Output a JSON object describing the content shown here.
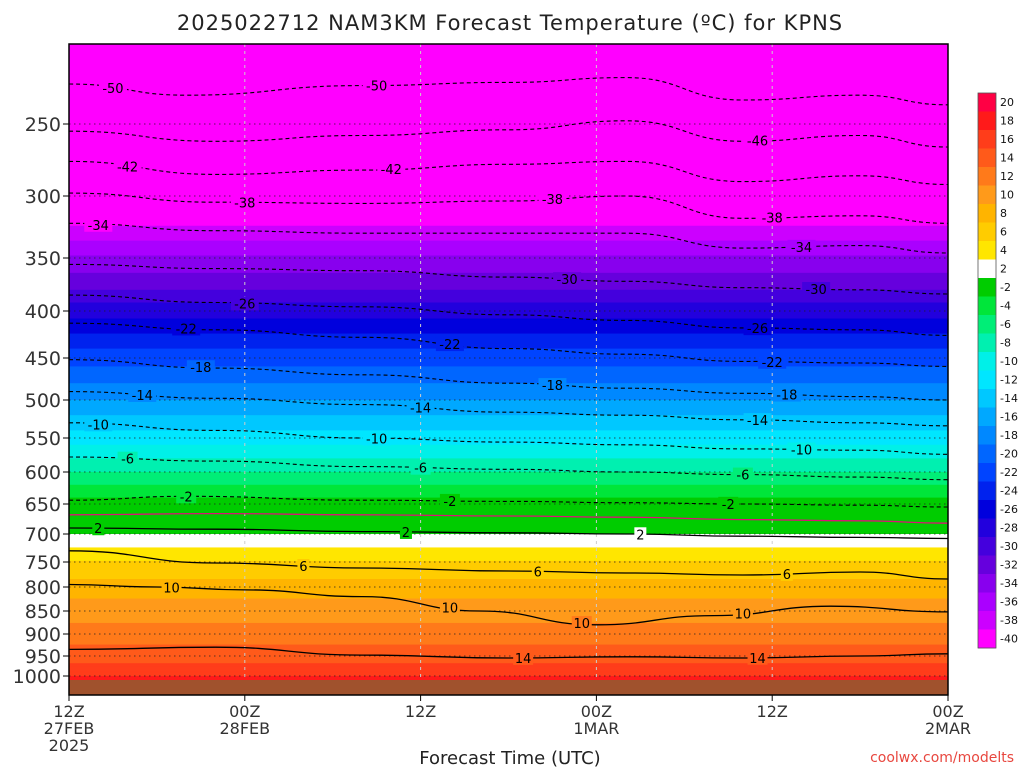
{
  "chart_data": {
    "type": "heatmap",
    "title": "2025022712 NAM3KM Forecast Temperature (ºC) for KPNS",
    "xlabel": "Forecast Time (UTC)",
    "ylabel": "",
    "watermark": "coolwx.com/modelts",
    "x_ticks": [
      {
        "hours": 0,
        "lines": [
          "12Z",
          "27FEB",
          "2025"
        ]
      },
      {
        "hours": 12,
        "lines": [
          "00Z",
          "28FEB"
        ]
      },
      {
        "hours": 24,
        "lines": [
          "12Z"
        ]
      },
      {
        "hours": 36,
        "lines": [
          "00Z",
          "1MAR"
        ]
      },
      {
        "hours": 48,
        "lines": [
          "12Z"
        ]
      },
      {
        "hours": 60,
        "lines": [
          "00Z",
          "2MAR"
        ]
      }
    ],
    "xlim_hours": [
      0,
      60
    ],
    "y_ticks": [
      250,
      300,
      350,
      400,
      450,
      500,
      550,
      600,
      650,
      700,
      750,
      800,
      850,
      900,
      950,
      1000
    ],
    "ylim_hpa": [
      200,
      1000
    ],
    "y_scale": "log-pressure",
    "grid": true,
    "colorbar": {
      "labels": [
        "20",
        "18",
        "16",
        "14",
        "12",
        "10",
        "8",
        "6",
        "4",
        "2",
        "-2",
        "-4",
        "-6",
        "-8",
        "-10",
        "-12",
        "-14",
        "-16",
        "-18",
        "-20",
        "-22",
        "-24",
        "-26",
        "-28",
        "-30",
        "-32",
        "-34",
        "-36",
        "-38",
        "-40"
      ],
      "colors": [
        "#ff0044",
        "#ff1a1a",
        "#ff3d1a",
        "#ff5a1a",
        "#ff7a1a",
        "#ff9a1a",
        "#ffb400",
        "#ffcc00",
        "#ffe600",
        "#ffffff",
        "#00cc00",
        "#00e63a",
        "#00ee77",
        "#00f0b0",
        "#00f0e8",
        "#00e6ff",
        "#00c8ff",
        "#00a8ff",
        "#0088ff",
        "#0066ff",
        "#0044ff",
        "#0022ee",
        "#0000dd",
        "#2200dd",
        "#4400dd",
        "#6600dd",
        "#8800ee",
        "#aa00ff",
        "#cc00ff",
        "#ff00ff"
      ]
    },
    "temperature_profile": [
      {
        "p": 200,
        "t": -56
      },
      {
        "p": 250,
        "t": -50
      },
      {
        "p": 300,
        "t": -42
      },
      {
        "p": 350,
        "t": -34
      },
      {
        "p": 400,
        "t": -27
      },
      {
        "p": 450,
        "t": -21
      },
      {
        "p": 500,
        "t": -16
      },
      {
        "p": 550,
        "t": -11
      },
      {
        "p": 600,
        "t": -6
      },
      {
        "p": 650,
        "t": -1
      },
      {
        "p": 700,
        "t": 2
      },
      {
        "p": 750,
        "t": 6
      },
      {
        "p": 800,
        "t": 9
      },
      {
        "p": 850,
        "t": 11
      },
      {
        "p": 900,
        "t": 13
      },
      {
        "p": 950,
        "t": 15
      },
      {
        "p": 1000,
        "t": 18
      }
    ],
    "contours": [
      {
        "level": -50,
        "style": "dashed",
        "color": "#000000",
        "pts": [
          [
            0,
            225
          ],
          [
            8,
            232
          ],
          [
            20,
            226
          ],
          [
            30,
            224
          ],
          [
            38,
            221
          ],
          [
            46,
            235
          ],
          [
            54,
            232
          ],
          [
            60,
            238
          ]
        ],
        "labels": [
          [
            3,
            "-50"
          ],
          [
            21,
            "-50"
          ]
        ]
      },
      {
        "level": -46,
        "style": "dashed",
        "color": "#000000",
        "pts": [
          [
            0,
            255
          ],
          [
            10,
            262
          ],
          [
            20,
            258
          ],
          [
            30,
            254
          ],
          [
            38,
            248
          ],
          [
            46,
            262
          ],
          [
            54,
            258
          ],
          [
            60,
            266
          ]
        ],
        "labels": [
          [
            47,
            "-46"
          ]
        ]
      },
      {
        "level": -42,
        "style": "dashed",
        "color": "#000000",
        "pts": [
          [
            0,
            276
          ],
          [
            10,
            285
          ],
          [
            20,
            282
          ],
          [
            30,
            278
          ],
          [
            38,
            276
          ],
          [
            46,
            290
          ],
          [
            54,
            286
          ],
          [
            60,
            292
          ]
        ],
        "labels": [
          [
            4,
            "-42"
          ],
          [
            22,
            "-42"
          ]
        ]
      },
      {
        "level": -38,
        "style": "dashed",
        "color": "#000000",
        "pts": [
          [
            0,
            298
          ],
          [
            10,
            305
          ],
          [
            20,
            306
          ],
          [
            30,
            304
          ],
          [
            38,
            300
          ],
          [
            46,
            318
          ],
          [
            54,
            316
          ],
          [
            60,
            322
          ]
        ],
        "labels": [
          [
            12,
            "-38"
          ],
          [
            33,
            "-38"
          ],
          [
            48,
            "-38"
          ]
        ]
      },
      {
        "level": -34,
        "style": "dashed",
        "color": "#000000",
        "pts": [
          [
            0,
            322
          ],
          [
            10,
            328
          ],
          [
            20,
            330
          ],
          [
            30,
            330
          ],
          [
            38,
            330
          ],
          [
            46,
            342
          ],
          [
            54,
            340
          ],
          [
            60,
            346
          ]
        ],
        "labels": [
          [
            2,
            "-34"
          ],
          [
            50,
            "-34"
          ]
        ]
      },
      {
        "level": -30,
        "style": "dashed",
        "color": "#000000",
        "pts": [
          [
            0,
            356
          ],
          [
            10,
            360
          ],
          [
            20,
            362
          ],
          [
            30,
            368
          ],
          [
            38,
            372
          ],
          [
            46,
            378
          ],
          [
            54,
            380
          ],
          [
            60,
            384
          ]
        ],
        "labels": [
          [
            34,
            "-30"
          ],
          [
            51,
            "-30"
          ]
        ]
      },
      {
        "level": -26,
        "style": "dashed",
        "color": "#000000",
        "pts": [
          [
            0,
            385
          ],
          [
            10,
            392
          ],
          [
            20,
            396
          ],
          [
            30,
            404
          ],
          [
            38,
            410
          ],
          [
            46,
            418
          ],
          [
            54,
            420
          ],
          [
            60,
            426
          ]
        ],
        "labels": [
          [
            12,
            "-26"
          ],
          [
            47,
            "-26"
          ]
        ]
      },
      {
        "level": -22,
        "style": "dashed",
        "color": "#000000",
        "pts": [
          [
            0,
            413
          ],
          [
            10,
            420
          ],
          [
            20,
            428
          ],
          [
            30,
            440
          ],
          [
            38,
            446
          ],
          [
            46,
            454
          ],
          [
            54,
            456
          ],
          [
            60,
            460
          ]
        ],
        "labels": [
          [
            8,
            "-22"
          ],
          [
            26,
            "-22"
          ],
          [
            48,
            "-22"
          ]
        ]
      },
      {
        "level": -18,
        "style": "dashed",
        "color": "#000000",
        "pts": [
          [
            0,
            452
          ],
          [
            10,
            462
          ],
          [
            20,
            470
          ],
          [
            30,
            480
          ],
          [
            38,
            486
          ],
          [
            46,
            492
          ],
          [
            54,
            496
          ],
          [
            60,
            500
          ]
        ],
        "labels": [
          [
            9,
            "-18"
          ],
          [
            33,
            "-18"
          ],
          [
            49,
            "-18"
          ]
        ]
      },
      {
        "level": -14,
        "style": "dashed",
        "color": "#000000",
        "pts": [
          [
            0,
            490
          ],
          [
            10,
            498
          ],
          [
            20,
            506
          ],
          [
            30,
            516
          ],
          [
            38,
            520
          ],
          [
            46,
            526
          ],
          [
            54,
            530
          ],
          [
            60,
            534
          ]
        ],
        "labels": [
          [
            5,
            "-14"
          ],
          [
            24,
            "-14"
          ],
          [
            47,
            "-14"
          ]
        ]
      },
      {
        "level": -10,
        "style": "dashed",
        "color": "#000000",
        "pts": [
          [
            0,
            530
          ],
          [
            10,
            540
          ],
          [
            20,
            550
          ],
          [
            30,
            556
          ],
          [
            38,
            560
          ],
          [
            46,
            566
          ],
          [
            54,
            568
          ],
          [
            60,
            574
          ]
        ],
        "labels": [
          [
            2,
            "-10"
          ],
          [
            21,
            "-10"
          ],
          [
            50,
            "-10"
          ]
        ]
      },
      {
        "level": -6,
        "style": "dashed",
        "color": "#000000",
        "pts": [
          [
            0,
            578
          ],
          [
            10,
            584
          ],
          [
            20,
            592
          ],
          [
            30,
            596
          ],
          [
            38,
            600
          ],
          [
            46,
            604
          ],
          [
            54,
            608
          ],
          [
            60,
            612
          ]
        ],
        "labels": [
          [
            4,
            "-6"
          ],
          [
            24,
            "-6"
          ],
          [
            46,
            "-6"
          ]
        ]
      },
      {
        "level": -2,
        "style": "dashed",
        "color": "#000000",
        "pts": [
          [
            0,
            644
          ],
          [
            8,
            638
          ],
          [
            20,
            644
          ],
          [
            30,
            646
          ],
          [
            38,
            648
          ],
          [
            46,
            650
          ],
          [
            54,
            652
          ],
          [
            60,
            655
          ]
        ],
        "labels": [
          [
            8,
            "-2"
          ],
          [
            26,
            "-2"
          ],
          [
            45,
            "-2"
          ]
        ]
      },
      {
        "level": 0,
        "style": "solid",
        "color": "#dd1177",
        "pts": [
          [
            0,
            668
          ],
          [
            10,
            666
          ],
          [
            20,
            668
          ],
          [
            30,
            670
          ],
          [
            38,
            672
          ],
          [
            46,
            676
          ],
          [
            54,
            678
          ],
          [
            60,
            682
          ]
        ],
        "labels": []
      },
      {
        "level": 2,
        "style": "solid",
        "color": "#000000",
        "pts": [
          [
            0,
            690
          ],
          [
            10,
            692
          ],
          [
            20,
            696
          ],
          [
            30,
            698
          ],
          [
            38,
            700
          ],
          [
            46,
            704
          ],
          [
            54,
            706
          ],
          [
            60,
            708
          ]
        ],
        "labels": [
          [
            2,
            "2"
          ],
          [
            23,
            "2"
          ],
          [
            39,
            "2"
          ]
        ]
      },
      {
        "level": 6,
        "style": "solid",
        "color": "#000000",
        "pts": [
          [
            0,
            730
          ],
          [
            10,
            752
          ],
          [
            20,
            762
          ],
          [
            30,
            768
          ],
          [
            38,
            772
          ],
          [
            46,
            776
          ],
          [
            54,
            770
          ],
          [
            60,
            784
          ]
        ],
        "labels": [
          [
            16,
            "6"
          ],
          [
            32,
            "6"
          ],
          [
            49,
            "6"
          ]
        ]
      },
      {
        "level": 10,
        "style": "solid",
        "color": "#000000",
        "pts": [
          [
            0,
            795
          ],
          [
            6,
            800
          ],
          [
            12,
            806
          ],
          [
            20,
            820
          ],
          [
            28,
            850
          ],
          [
            36,
            880
          ],
          [
            44,
            860
          ],
          [
            52,
            840
          ],
          [
            60,
            852
          ]
        ],
        "labels": [
          [
            7,
            "10"
          ],
          [
            26,
            "10"
          ],
          [
            35,
            "10"
          ],
          [
            46,
            "10"
          ]
        ]
      },
      {
        "level": 14,
        "style": "solid",
        "color": "#000000",
        "pts": [
          [
            0,
            935
          ],
          [
            10,
            930
          ],
          [
            20,
            948
          ],
          [
            30,
            955
          ],
          [
            38,
            952
          ],
          [
            46,
            955
          ],
          [
            54,
            950
          ],
          [
            60,
            945
          ]
        ],
        "labels": [
          [
            31,
            "14"
          ],
          [
            47,
            "14"
          ]
        ]
      }
    ]
  }
}
